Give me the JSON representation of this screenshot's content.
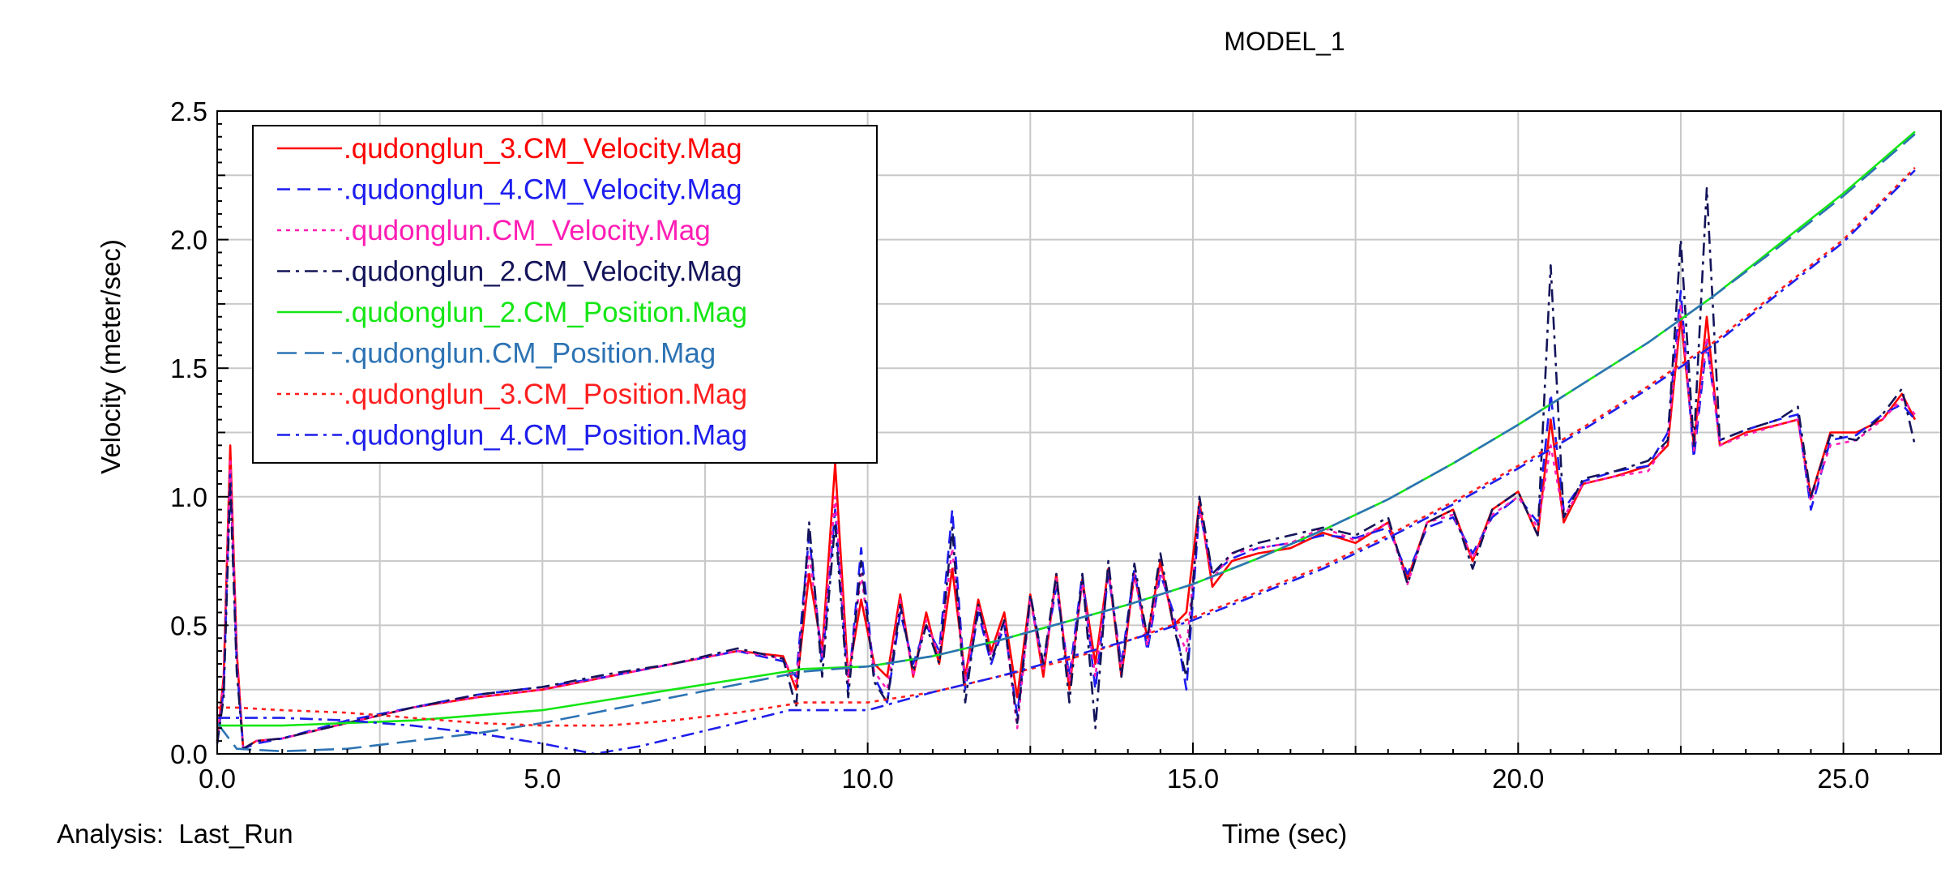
{
  "chart_data": {
    "type": "line",
    "title": "MODEL_1",
    "xlabel": "Time (sec)",
    "ylabel": "Velocity (meter/sec)",
    "footer_label": "Analysis:  Last_Run",
    "xlim": [
      0,
      26.5
    ],
    "ylim": [
      0,
      2.5
    ],
    "x_ticks": [
      0,
      5,
      10,
      15,
      20,
      25
    ],
    "x_tick_labels": [
      "0.0",
      "5.0",
      "10.0",
      "15.0",
      "20.0",
      "25.0"
    ],
    "y_ticks": [
      0,
      0.5,
      1.0,
      1.5,
      2.0,
      2.5
    ],
    "y_tick_labels": [
      "0.0",
      "0.5",
      "1.0",
      "1.5",
      "2.0",
      "2.5"
    ],
    "grid": true,
    "legend_position": "top-left",
    "series": [
      {
        "name": ".qudonglun_3.CM_Velocity.Mag",
        "color": "#ff0000",
        "dash": "solid",
        "x": [
          0,
          0.1,
          0.2,
          0.3,
          0.4,
          0.6,
          1,
          2,
          3,
          4,
          5,
          6,
          7,
          8,
          8.7,
          8.9,
          9.1,
          9.3,
          9.5,
          9.7,
          9.9,
          10.1,
          10.3,
          10.5,
          10.7,
          10.9,
          11.1,
          11.3,
          11.5,
          11.7,
          11.9,
          12.1,
          12.3,
          12.5,
          12.7,
          12.9,
          13.1,
          13.3,
          13.5,
          13.7,
          13.9,
          14.1,
          14.3,
          14.5,
          14.7,
          14.9,
          15.1,
          15.3,
          15.6,
          16,
          16.5,
          17,
          17.5,
          18,
          18.3,
          18.6,
          19,
          19.3,
          19.6,
          20,
          20.3,
          20.5,
          20.7,
          21,
          21.5,
          22,
          22.3,
          22.5,
          22.7,
          22.9,
          23.1,
          23.5,
          24,
          24.3,
          24.5,
          24.8,
          25.2,
          25.6,
          25.9,
          26.1
        ],
        "y": [
          0.05,
          0.3,
          1.2,
          0.4,
          0.02,
          0.05,
          0.06,
          0.12,
          0.18,
          0.22,
          0.25,
          0.3,
          0.35,
          0.4,
          0.38,
          0.25,
          0.7,
          0.4,
          1.13,
          0.3,
          0.6,
          0.35,
          0.3,
          0.62,
          0.3,
          0.55,
          0.35,
          0.72,
          0.3,
          0.6,
          0.4,
          0.55,
          0.22,
          0.62,
          0.3,
          0.7,
          0.25,
          0.68,
          0.35,
          0.72,
          0.3,
          0.7,
          0.45,
          0.75,
          0.5,
          0.55,
          0.98,
          0.65,
          0.75,
          0.78,
          0.8,
          0.86,
          0.82,
          0.9,
          0.68,
          0.9,
          0.95,
          0.75,
          0.95,
          1.02,
          0.85,
          1.3,
          0.9,
          1.05,
          1.08,
          1.12,
          1.2,
          1.7,
          1.2,
          1.7,
          1.2,
          1.25,
          1.28,
          1.3,
          1.0,
          1.25,
          1.25,
          1.3,
          1.4,
          1.3
        ]
      },
      {
        "name": ".qudonglun_4.CM_Velocity.Mag",
        "color": "#1c1cf0",
        "dash": "dash",
        "x": [
          0,
          0.1,
          0.2,
          0.3,
          0.4,
          0.6,
          1,
          2,
          3,
          4,
          5,
          6,
          7,
          8,
          8.7,
          8.9,
          9.1,
          9.3,
          9.5,
          9.7,
          9.9,
          10.1,
          10.3,
          10.5,
          10.7,
          10.9,
          11.1,
          11.3,
          11.5,
          11.7,
          11.9,
          12.1,
          12.3,
          12.5,
          12.7,
          12.9,
          13.1,
          13.3,
          13.5,
          13.7,
          13.9,
          14.1,
          14.3,
          14.5,
          14.7,
          14.9,
          15.1,
          15.3,
          15.6,
          16,
          16.5,
          17,
          17.5,
          18,
          18.3,
          18.6,
          19,
          19.3,
          19.6,
          20,
          20.3,
          20.5,
          20.7,
          21,
          21.5,
          22,
          22.3,
          22.5,
          22.7,
          22.9,
          23.1,
          23.5,
          24,
          24.3,
          24.5,
          24.8,
          25.2,
          25.6,
          25.9,
          26.1
        ],
        "y": [
          0.04,
          0.25,
          1.1,
          0.35,
          0.02,
          0.04,
          0.06,
          0.13,
          0.18,
          0.23,
          0.26,
          0.3,
          0.35,
          0.4,
          0.36,
          0.3,
          0.85,
          0.35,
          0.95,
          0.25,
          0.8,
          0.3,
          0.2,
          0.55,
          0.35,
          0.5,
          0.4,
          0.95,
          0.25,
          0.55,
          0.35,
          0.5,
          0.15,
          0.6,
          0.35,
          0.65,
          0.3,
          0.7,
          0.25,
          0.7,
          0.35,
          0.72,
          0.4,
          0.7,
          0.55,
          0.25,
          0.95,
          0.7,
          0.76,
          0.8,
          0.82,
          0.85,
          0.84,
          0.88,
          0.7,
          0.88,
          0.92,
          0.78,
          0.92,
          1.0,
          0.9,
          1.4,
          0.95,
          1.06,
          1.1,
          1.12,
          1.25,
          1.8,
          1.15,
          1.6,
          1.22,
          1.26,
          1.3,
          1.32,
          0.95,
          1.22,
          1.24,
          1.32,
          1.36,
          1.3
        ]
      },
      {
        "name": ".qudonglun.CM_Velocity.Mag",
        "color": "#ff1eb4",
        "dash": "dot",
        "x": [
          0,
          0.1,
          0.2,
          0.3,
          0.4,
          0.6,
          1,
          2,
          3,
          4,
          5,
          6,
          7,
          8,
          8.7,
          8.9,
          9.1,
          9.3,
          9.5,
          9.7,
          9.9,
          10.1,
          10.3,
          10.5,
          10.7,
          10.9,
          11.1,
          11.3,
          11.5,
          11.7,
          11.9,
          12.1,
          12.3,
          12.5,
          12.7,
          12.9,
          13.1,
          13.3,
          13.5,
          13.7,
          13.9,
          14.1,
          14.3,
          14.5,
          14.7,
          14.9,
          15.1,
          15.3,
          15.6,
          16,
          16.5,
          17,
          17.5,
          18,
          18.3,
          18.6,
          19,
          19.3,
          19.6,
          20,
          20.3,
          20.5,
          20.7,
          21,
          21.5,
          22,
          22.3,
          22.5,
          22.7,
          22.9,
          23.1,
          23.5,
          24,
          24.3,
          24.5,
          24.8,
          25.2,
          25.6,
          25.9,
          26.1
        ],
        "y": [
          0.05,
          0.28,
          1.15,
          0.38,
          0.02,
          0.05,
          0.06,
          0.12,
          0.18,
          0.22,
          0.25,
          0.3,
          0.35,
          0.4,
          0.37,
          0.28,
          0.78,
          0.38,
          1.0,
          0.28,
          0.7,
          0.32,
          0.25,
          0.6,
          0.3,
          0.52,
          0.38,
          0.8,
          0.28,
          0.58,
          0.38,
          0.52,
          0.1,
          0.6,
          0.32,
          0.68,
          0.28,
          0.66,
          0.3,
          0.72,
          0.32,
          0.7,
          0.42,
          0.72,
          0.52,
          0.4,
          0.96,
          0.68,
          0.78,
          0.8,
          0.82,
          0.88,
          0.83,
          0.9,
          0.66,
          0.9,
          0.93,
          0.76,
          0.93,
          1.0,
          0.88,
          1.2,
          0.92,
          1.05,
          1.08,
          1.1,
          1.22,
          1.75,
          1.18,
          1.62,
          1.2,
          1.24,
          1.28,
          1.3,
          0.98,
          1.2,
          1.22,
          1.3,
          1.38,
          1.32
        ]
      },
      {
        "name": ".qudonglun_2.CM_Velocity.Mag",
        "color": "#14145a",
        "dash": "dashdot",
        "x": [
          0,
          0.1,
          0.2,
          0.3,
          0.4,
          0.6,
          1,
          2,
          3,
          4,
          5,
          6,
          7,
          8,
          8.7,
          8.9,
          9.1,
          9.3,
          9.5,
          9.7,
          9.9,
          10.1,
          10.3,
          10.5,
          10.7,
          10.9,
          11.1,
          11.3,
          11.5,
          11.7,
          11.9,
          12.1,
          12.3,
          12.5,
          12.7,
          12.9,
          13.1,
          13.3,
          13.5,
          13.7,
          13.9,
          14.1,
          14.3,
          14.5,
          14.7,
          14.9,
          15.1,
          15.3,
          15.6,
          16,
          16.5,
          17,
          17.5,
          18,
          18.3,
          18.6,
          19,
          19.3,
          19.6,
          20,
          20.3,
          20.5,
          20.7,
          21,
          21.5,
          22,
          22.3,
          22.5,
          22.7,
          22.9,
          23.1,
          23.5,
          24,
          24.3,
          24.5,
          24.8,
          25.2,
          25.6,
          25.9,
          26.1
        ],
        "y": [
          0.04,
          0.22,
          1.05,
          0.32,
          0.02,
          0.05,
          0.06,
          0.12,
          0.18,
          0.23,
          0.26,
          0.31,
          0.35,
          0.41,
          0.37,
          0.18,
          0.9,
          0.3,
          0.9,
          0.22,
          0.75,
          0.28,
          0.2,
          0.58,
          0.32,
          0.5,
          0.35,
          0.88,
          0.2,
          0.58,
          0.36,
          0.52,
          0.12,
          0.62,
          0.35,
          0.7,
          0.2,
          0.7,
          0.1,
          0.75,
          0.3,
          0.74,
          0.45,
          0.78,
          0.5,
          0.3,
          1.0,
          0.7,
          0.78,
          0.82,
          0.85,
          0.88,
          0.85,
          0.92,
          0.66,
          0.9,
          0.95,
          0.72,
          0.95,
          1.02,
          0.85,
          1.9,
          0.92,
          1.07,
          1.1,
          1.14,
          1.22,
          2.0,
          1.2,
          2.2,
          1.22,
          1.26,
          1.3,
          1.35,
          1.0,
          1.24,
          1.22,
          1.32,
          1.42,
          1.2
        ]
      },
      {
        "name": ".qudonglun_2.CM_Position.Mag",
        "color": "#14e614",
        "dash": "solid",
        "x": [
          0,
          1,
          2,
          3,
          4,
          5,
          6,
          7,
          8,
          9,
          10,
          11,
          12,
          13,
          14,
          15,
          16,
          17,
          18,
          19,
          20,
          21,
          22,
          23,
          24,
          25,
          26.1
        ],
        "y": [
          0.11,
          0.11,
          0.12,
          0.13,
          0.15,
          0.17,
          0.21,
          0.25,
          0.29,
          0.33,
          0.34,
          0.38,
          0.44,
          0.51,
          0.58,
          0.66,
          0.76,
          0.87,
          0.99,
          1.13,
          1.28,
          1.44,
          1.6,
          1.78,
          1.98,
          2.18,
          2.42
        ]
      },
      {
        "name": ".qudonglun.CM_Position.Mag",
        "color": "#2d73b4",
        "dash": "longdash",
        "x": [
          0,
          0.3,
          1,
          2,
          3,
          4,
          5,
          6,
          7,
          8,
          9,
          10,
          11,
          12,
          13,
          14,
          15,
          16,
          17,
          18,
          19,
          20,
          21,
          22,
          23,
          24,
          25,
          26.1
        ],
        "y": [
          0.12,
          0.02,
          0.01,
          0.02,
          0.05,
          0.08,
          0.12,
          0.17,
          0.22,
          0.27,
          0.32,
          0.34,
          0.38,
          0.44,
          0.51,
          0.58,
          0.66,
          0.76,
          0.87,
          0.99,
          1.13,
          1.28,
          1.44,
          1.6,
          1.78,
          1.97,
          2.17,
          2.41
        ]
      },
      {
        "name": ".qudonglun_3.CM_Position.Mag",
        "color": "#ff1e1e",
        "dash": "dot",
        "x": [
          0,
          0.3,
          1,
          2,
          3,
          4,
          5,
          6,
          7,
          8,
          9,
          10,
          11,
          12,
          13,
          14,
          15,
          16,
          17,
          18,
          19,
          20,
          21,
          22,
          23,
          24,
          25,
          26.1
        ],
        "y": [
          0.18,
          0.18,
          0.17,
          0.16,
          0.14,
          0.12,
          0.11,
          0.11,
          0.13,
          0.16,
          0.2,
          0.2,
          0.24,
          0.3,
          0.36,
          0.44,
          0.53,
          0.63,
          0.73,
          0.85,
          0.98,
          1.12,
          1.27,
          1.43,
          1.6,
          1.8,
          2.0,
          2.28
        ]
      },
      {
        "name": ".qudonglun_4.CM_Position.Mag",
        "color": "#1e1eeb",
        "dash": "dashdot",
        "x": [
          0,
          0.3,
          1,
          2,
          3,
          4,
          5,
          5.8,
          6.5,
          7,
          8,
          8.8,
          9,
          10,
          11,
          12,
          13,
          14,
          15,
          16,
          17,
          18,
          19,
          20,
          21,
          22,
          23,
          24,
          25,
          26.1
        ],
        "y": [
          0.14,
          0.14,
          0.14,
          0.13,
          0.11,
          0.08,
          0.04,
          0.0,
          0.03,
          0.06,
          0.12,
          0.17,
          0.17,
          0.17,
          0.24,
          0.3,
          0.37,
          0.44,
          0.52,
          0.62,
          0.72,
          0.84,
          0.97,
          1.11,
          1.26,
          1.42,
          1.59,
          1.79,
          1.99,
          2.27
        ]
      }
    ]
  }
}
